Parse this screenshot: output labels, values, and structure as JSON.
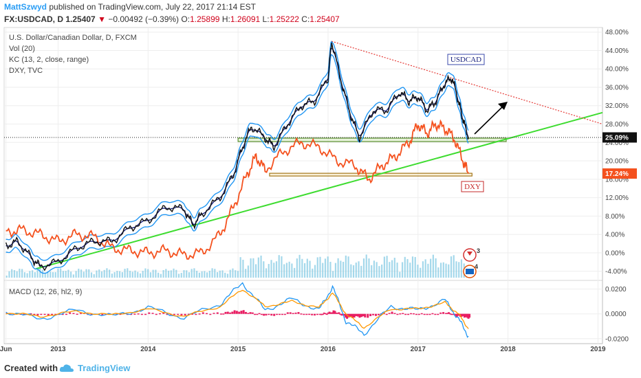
{
  "header": {
    "author": "MattSzwyd",
    "published_text": "published on TradingView.com, July 22, 2017 21:14 EST",
    "symbol": "FX:USDCAD, D",
    "last": "1.25407",
    "change_arrow": "▼",
    "change": "−0.00492 (−0.39%)",
    "o_label": "O:",
    "o": "1.25899",
    "h_label": "H:",
    "h": "1.26091",
    "l_label": "L:",
    "l": "1.25222",
    "c_label": "C:",
    "c": "1.25407"
  },
  "legend": {
    "line1": "U.S. Dollar/Canadian Dollar, D, FXCM",
    "line2": "Vol (20)",
    "line3": "KC (13, 2, close, range)",
    "line4": "DXY, TVC",
    "macd": "MACD (12, 26, hl2, 9)"
  },
  "labels": {
    "usdcad": "USDCAD",
    "dxy": "DXY",
    "badge_usdcad": "25.09%",
    "badge_dxy": "17.24%",
    "event_count_1": "3",
    "event_count_2": "4"
  },
  "footer": {
    "created_with": "Created with",
    "brand": "TradingView"
  },
  "colors": {
    "price": "#111111",
    "keltner": "#2196f3",
    "keltner_mid": "#1a237e",
    "dxy": "#f4511e",
    "trend_green": "#3ddc2f",
    "trend_red": "#e53935",
    "volume": "#7ec8e3",
    "macd": "#2196f3",
    "signal": "#ff9800",
    "histogram": "#e91e63",
    "support_zone": "#7fbf4d",
    "dxy_zone": "#c69a3a"
  },
  "chart_data": [
    {
      "type": "line",
      "title": "U.S. Dollar/Canadian Dollar, D, FXCM",
      "y_unit": "% change",
      "ylim": [
        -6,
        49
      ],
      "y_ticks": [
        "48.00%",
        "44.00%",
        "40.00%",
        "36.00%",
        "32.00%",
        "28.00%",
        "24.00%",
        "20.00%",
        "16.00%",
        "12.00%",
        "8.00%",
        "4.00%",
        "0.00%",
        "-4.00%"
      ],
      "y_tick_values": [
        48,
        44,
        40,
        36,
        32,
        28,
        24,
        20,
        16,
        12,
        8,
        4,
        0,
        -4
      ],
      "x_ticks": [
        "Jun",
        "2013",
        "2014",
        "2015",
        "2016",
        "2017",
        "2018",
        "2019"
      ],
      "x_tick_values": [
        2012.42,
        2013.0,
        2014.0,
        2015.0,
        2016.0,
        2017.0,
        2018.0,
        2019.0
      ],
      "xlim": [
        2012.4,
        2019.05
      ],
      "grid": true,
      "series": [
        {
          "name": "USDCAD",
          "x": [
            2012.42,
            2012.55,
            2012.7,
            2012.8,
            2013.0,
            2013.2,
            2013.4,
            2013.6,
            2013.8,
            2014.0,
            2014.2,
            2014.4,
            2014.5,
            2014.6,
            2014.8,
            2014.95,
            2015.05,
            2015.15,
            2015.3,
            2015.4,
            2015.55,
            2015.7,
            2015.85,
            2016.0,
            2016.04,
            2016.15,
            2016.25,
            2016.35,
            2016.5,
            2016.65,
            2016.8,
            2016.9,
            2017.0,
            2017.1,
            2017.2,
            2017.3,
            2017.38,
            2017.45,
            2017.5,
            2017.56
          ],
          "y": [
            1.5,
            2.5,
            -1.0,
            -3.0,
            -2.0,
            1.0,
            2.5,
            2.5,
            5.5,
            7.0,
            10.0,
            9.5,
            6.0,
            8.5,
            12.0,
            17.0,
            23.0,
            27.5,
            25.0,
            23.0,
            28.0,
            32.0,
            33.0,
            38.0,
            46.0,
            37.0,
            30.0,
            25.0,
            31.0,
            31.0,
            35.0,
            33.0,
            34.0,
            31.0,
            33.0,
            37.0,
            38.0,
            33.0,
            29.0,
            25.09
          ]
        },
        {
          "name": "DXY",
          "x": [
            2012.42,
            2012.6,
            2012.8,
            2013.0,
            2013.2,
            2013.4,
            2013.6,
            2013.8,
            2014.0,
            2014.2,
            2014.4,
            2014.6,
            2014.8,
            2014.95,
            2015.1,
            2015.2,
            2015.3,
            2015.5,
            2015.7,
            2015.9,
            2016.1,
            2016.3,
            2016.45,
            2016.6,
            2016.75,
            2016.9,
            2017.0,
            2017.1,
            2017.2,
            2017.3,
            2017.4,
            2017.5,
            2017.56
          ],
          "y": [
            4.5,
            5.0,
            4.0,
            2.5,
            4.0,
            3.5,
            1.0,
            0.5,
            0.0,
            0.5,
            -0.5,
            0.0,
            4.0,
            10.0,
            17.0,
            21.0,
            18.0,
            22.0,
            24.0,
            23.0,
            20.0,
            19.0,
            16.0,
            19.0,
            21.0,
            24.0,
            28.0,
            26.0,
            28.0,
            27.0,
            25.0,
            20.0,
            17.24
          ]
        }
      ],
      "levels": [
        {
          "name": "support",
          "y": 25.09
        },
        {
          "name": "dxy support",
          "y": 17.0
        }
      ],
      "annotations": [
        "USDCAD",
        "DXY",
        "25.09%",
        "17.24%"
      ]
    },
    {
      "type": "line",
      "title": "MACD (12, 26, hl2, 9)",
      "ylim": [
        -0.024,
        0.027
      ],
      "y_ticks": [
        "0.0200",
        "0.0000",
        "-0.0200"
      ],
      "y_tick_values": [
        0.02,
        0.0,
        -0.02
      ],
      "grid": true,
      "series": [
        {
          "name": "MACD",
          "x": [
            2012.42,
            2012.8,
            2013.2,
            2013.6,
            2014.0,
            2014.4,
            2014.8,
            2015.05,
            2015.3,
            2015.6,
            2015.9,
            2016.05,
            2016.2,
            2016.4,
            2016.7,
            2017.0,
            2017.3,
            2017.45,
            2017.56
          ],
          "y": [
            0.002,
            -0.004,
            0.003,
            -0.002,
            0.005,
            -0.003,
            0.008,
            0.025,
            0.003,
            0.012,
            0.003,
            0.022,
            -0.006,
            -0.016,
            0.006,
            0.003,
            0.011,
            -0.004,
            -0.018
          ]
        },
        {
          "name": "Signal",
          "x": [
            2012.42,
            2012.8,
            2013.2,
            2013.6,
            2014.0,
            2014.4,
            2014.8,
            2015.05,
            2015.3,
            2015.6,
            2015.9,
            2016.05,
            2016.2,
            2016.4,
            2016.7,
            2017.0,
            2017.3,
            2017.45,
            2017.56
          ],
          "y": [
            0.001,
            -0.002,
            0.002,
            -0.001,
            0.004,
            -0.002,
            0.006,
            0.02,
            0.006,
            0.01,
            0.005,
            0.017,
            0.0,
            -0.011,
            0.004,
            0.004,
            0.009,
            0.0,
            -0.012
          ]
        }
      ]
    }
  ]
}
